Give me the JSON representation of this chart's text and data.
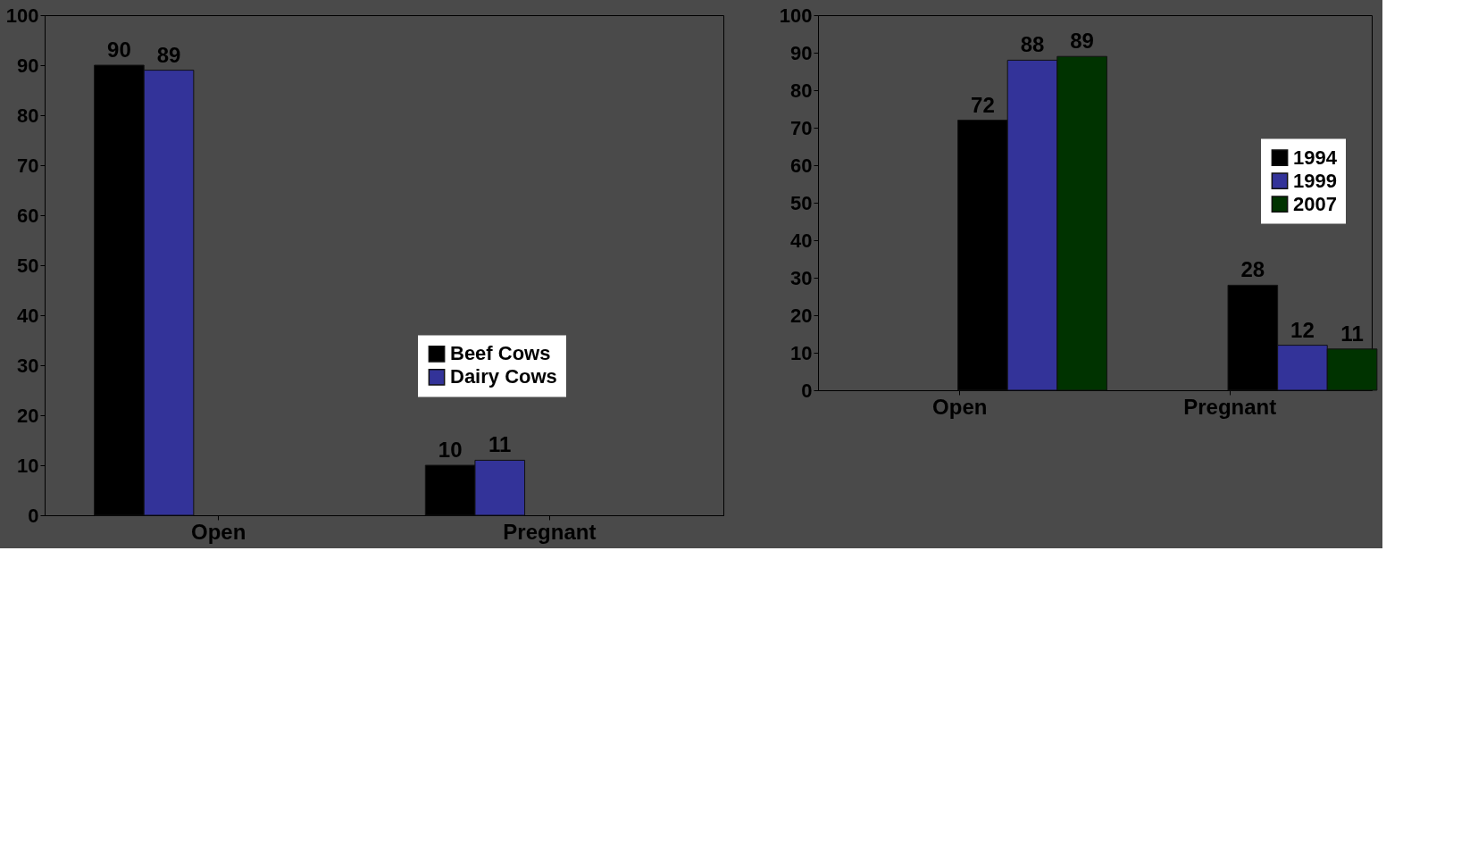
{
  "chart_data": [
    {
      "type": "bar",
      "categories": [
        "Open",
        "Pregnant"
      ],
      "series": [
        {
          "name": "Beef Cows",
          "color": "#000000",
          "values": [
            90,
            10
          ]
        },
        {
          "name": "Dairy Cows",
          "color": "#333399",
          "values": [
            89,
            11
          ]
        }
      ],
      "ylim": [
        0,
        100
      ],
      "yticks": [
        0,
        10,
        20,
        30,
        40,
        50,
        60,
        70,
        80,
        90,
        100
      ],
      "data_labels": true,
      "legend": "bottom right",
      "grid": false
    },
    {
      "type": "bar",
      "categories": [
        "Open",
        "Pregnant"
      ],
      "series": [
        {
          "name": "1994",
          "color": "#000000",
          "values": [
            72,
            28
          ]
        },
        {
          "name": "1999",
          "color": "#333399",
          "values": [
            88,
            12
          ]
        },
        {
          "name": "2007",
          "color": "#003300",
          "values": [
            89,
            11
          ]
        }
      ],
      "ylim": [
        0,
        100
      ],
      "yticks": [
        0,
        10,
        20,
        30,
        40,
        50,
        60,
        70,
        80,
        90,
        100
      ],
      "data_labels": true,
      "legend": "right",
      "grid": false
    }
  ]
}
